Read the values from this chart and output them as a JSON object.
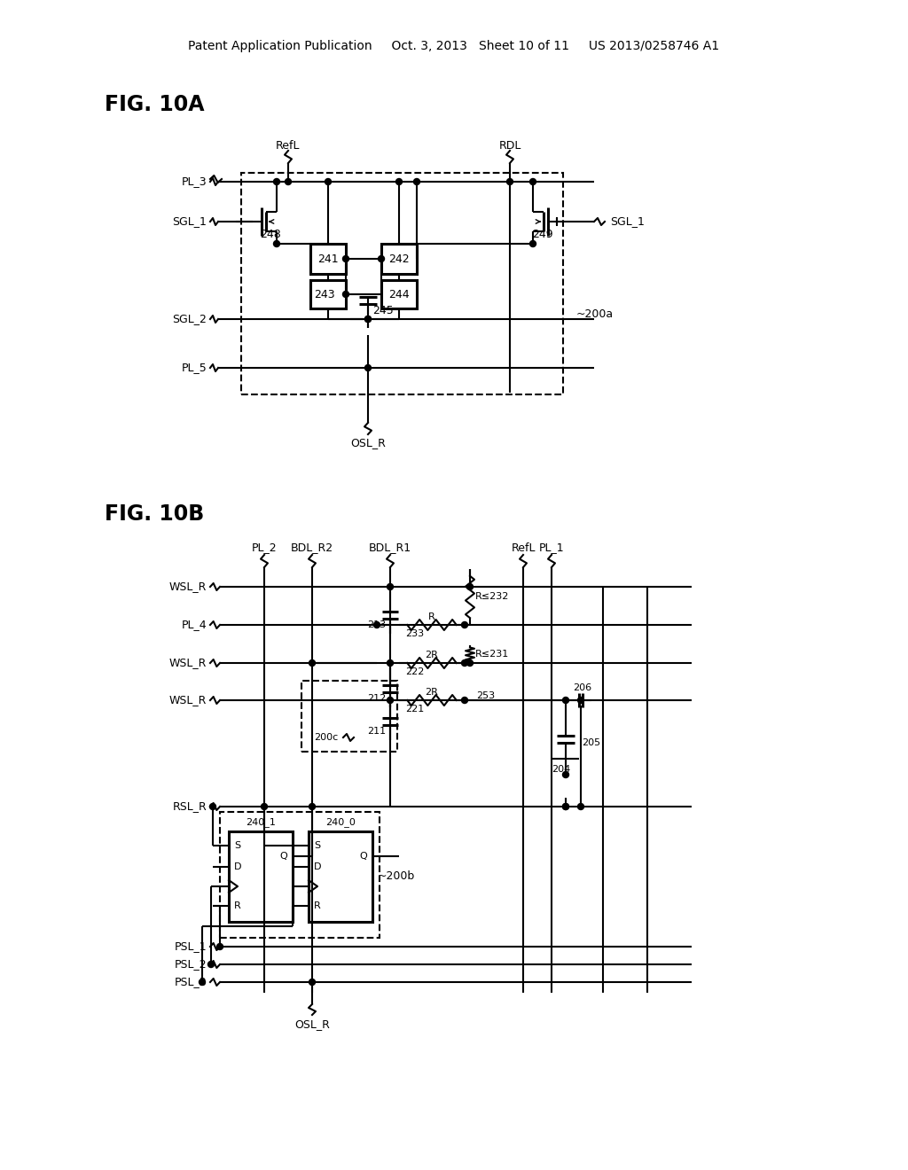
{
  "bg_color": "#ffffff",
  "line_color": "#000000",
  "header": "Patent Application Publication     Oct. 3, 2013   Sheet 10 of 11     US 2013/0258746 A1"
}
